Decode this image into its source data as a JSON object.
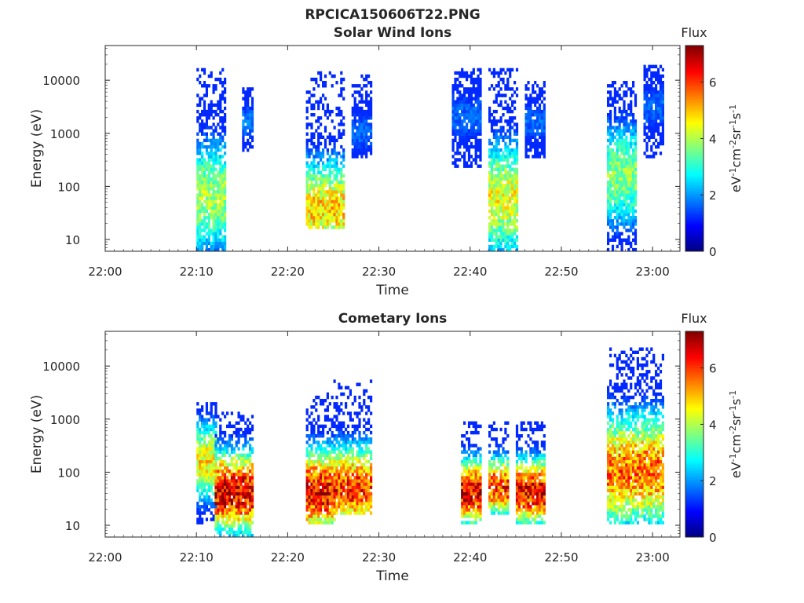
{
  "figure_title": "RPCICA150606T22.PNG",
  "chart_data": [
    {
      "type": "heatmap",
      "title": "Solar Wind Ions",
      "xlabel": "Time",
      "ylabel": "Energy (eV)",
      "x_ticks": [
        "22:00",
        "22:10",
        "22:20",
        "22:30",
        "22:40",
        "22:50",
        "23:00"
      ],
      "x_range_minutes": [
        0,
        63
      ],
      "y_scale": "log",
      "y_ticks": [
        10,
        100,
        1000,
        10000
      ],
      "y_range": [
        6,
        45000
      ],
      "colorbar": {
        "title": "Flux",
        "label": "eV-1cm-2sr-1s-1",
        "range": [
          0,
          7.3
        ],
        "ticks": [
          0,
          2,
          4,
          6
        ],
        "colormap": "jet"
      },
      "bursts": [
        {
          "t0": 22.1,
          "t1": 22.13,
          "e_min": 6,
          "e_max": 16000,
          "flux_core": 4.2,
          "core_energy": 60
        },
        {
          "t0": 22.15,
          "t1": 22.16,
          "e_min": 400,
          "e_max": 8000,
          "flux_core": 2.0,
          "core_energy": 1500
        },
        {
          "t0": 22.22,
          "t1": 22.26,
          "e_min": 15,
          "e_max": 13000,
          "flux_core": 5.2,
          "core_energy": 35
        },
        {
          "t0": 22.27,
          "t1": 22.29,
          "e_min": 300,
          "e_max": 12000,
          "flux_core": 1.8,
          "core_energy": 1000
        },
        {
          "t0": 22.38,
          "t1": 22.41,
          "e_min": 200,
          "e_max": 16000,
          "flux_core": 1.8,
          "core_energy": 2000
        },
        {
          "t0": 22.42,
          "t1": 22.45,
          "e_min": 6,
          "e_max": 15000,
          "flux_core": 4.8,
          "core_energy": 55
        },
        {
          "t0": 22.46,
          "t1": 22.48,
          "e_min": 300,
          "e_max": 9000,
          "flux_core": 1.8,
          "core_energy": 1500
        },
        {
          "t0": 22.55,
          "t1": 22.58,
          "e_min": 6,
          "e_max": 9000,
          "flux_core": 4.0,
          "core_energy": 150
        },
        {
          "t0": 22.59,
          "t1": 23.01,
          "e_min": 300,
          "e_max": 18000,
          "flux_core": 1.8,
          "core_energy": 3000
        }
      ]
    },
    {
      "type": "heatmap",
      "title": "Cometary Ions",
      "xlabel": "Time",
      "ylabel": "Energy (eV)",
      "x_ticks": [
        "22:00",
        "22:10",
        "22:20",
        "22:30",
        "22:40",
        "22:50",
        "23:00"
      ],
      "x_range_minutes": [
        0,
        63
      ],
      "y_scale": "log",
      "y_ticks": [
        10,
        100,
        1000,
        10000
      ],
      "y_range": [
        6,
        45000
      ],
      "colorbar": {
        "title": "Flux",
        "label": "eV-1cm-2sr-1s-1",
        "range": [
          0,
          7.3
        ],
        "ticks": [
          0,
          2,
          4,
          6
        ],
        "colormap": "jet"
      },
      "bursts": [
        {
          "t0": 22.1,
          "t1": 22.12,
          "e_min": 10,
          "e_max": 2000,
          "flux_core": 5.0,
          "core_energy": 150
        },
        {
          "t0": 22.12,
          "t1": 22.16,
          "e_min": 6,
          "e_max": 1300,
          "flux_core": 7.2,
          "core_energy": 40
        },
        {
          "t0": 22.22,
          "t1": 22.25,
          "e_min": 10,
          "e_max": 3000,
          "flux_core": 7.0,
          "core_energy": 40
        },
        {
          "t0": 22.25,
          "t1": 22.29,
          "e_min": 15,
          "e_max": 5000,
          "flux_core": 6.5,
          "core_energy": 45
        },
        {
          "t0": 22.39,
          "t1": 22.41,
          "e_min": 10,
          "e_max": 800,
          "flux_core": 7.2,
          "core_energy": 40
        },
        {
          "t0": 22.42,
          "t1": 22.44,
          "e_min": 15,
          "e_max": 800,
          "flux_core": 6.5,
          "core_energy": 50
        },
        {
          "t0": 22.45,
          "t1": 22.48,
          "e_min": 10,
          "e_max": 800,
          "flux_core": 7.0,
          "core_energy": 40
        },
        {
          "t0": 22.55,
          "t1": 23.01,
          "e_min": 10,
          "e_max": 20000,
          "flux_core": 6.0,
          "core_energy": 100
        }
      ]
    }
  ]
}
